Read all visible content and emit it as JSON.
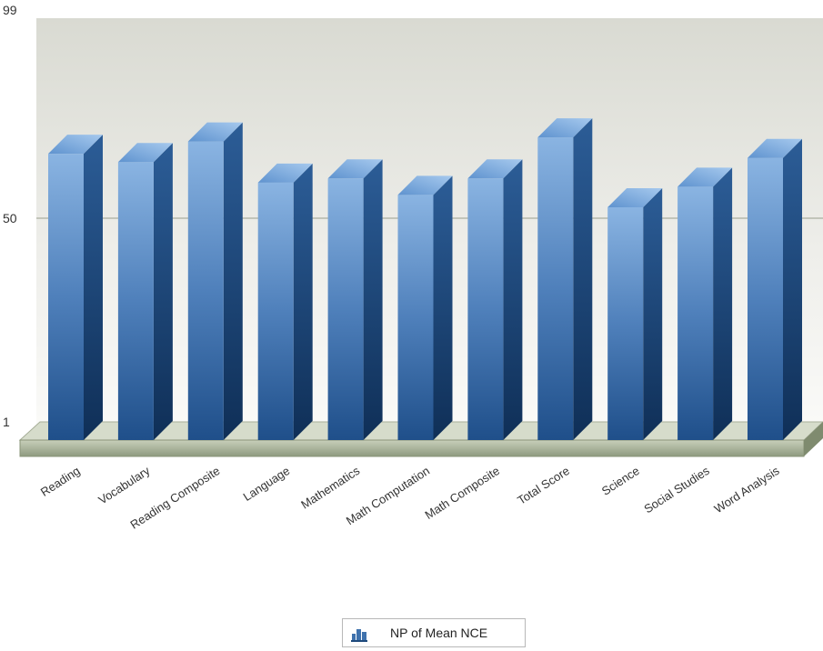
{
  "chart_data": {
    "type": "bar",
    "categories": [
      "Reading",
      "Vocabulary",
      "Reading Composite",
      "Language",
      "Mathematics",
      "Math Computation",
      "Math Composite",
      "Total Score",
      "Science",
      "Social Studies",
      "Word Analysis"
    ],
    "series": [
      {
        "name": "NP of Mean NCE",
        "values": [
          66,
          64,
          69,
          59,
          60,
          56,
          60,
          70,
          53,
          58,
          65
        ]
      }
    ],
    "yticks": [
      "1",
      "50",
      "99"
    ],
    "ylim": [
      1,
      99
    ],
    "grid": true,
    "legend_position": "bottom",
    "bar_style": "3d",
    "colors": {
      "bar": "#3f72ad",
      "bar_side": "#1e4a7c",
      "bar_top": "#7aa7d6",
      "background_top": "#e4e5de",
      "base": "#b9c2a9"
    }
  }
}
